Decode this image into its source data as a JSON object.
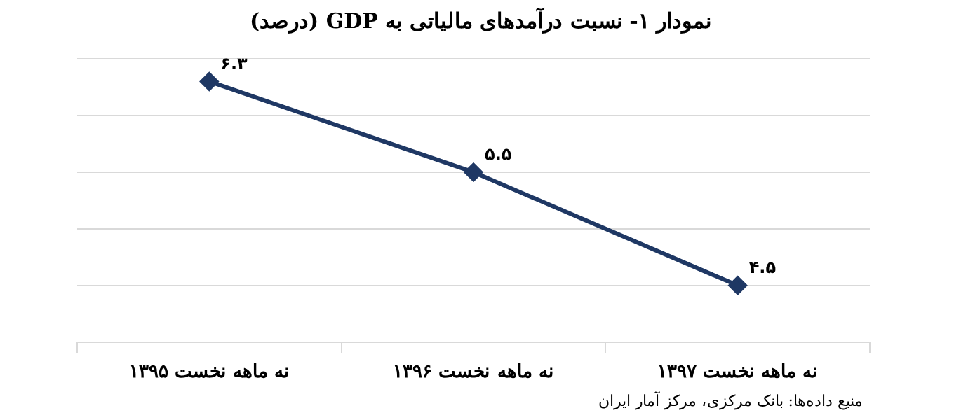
{
  "chart_data": {
    "type": "line",
    "title": "نمودار ۱- نسبت درآمدهای مالیاتی به GDP (درصد)",
    "categories": [
      "نه ماهه نخست ۱۳۹۵",
      "نه ماهه نخست ۱۳۹۶",
      "نه ماهه نخست ۱۳۹۷"
    ],
    "series": [
      {
        "color": "#1f3864",
        "values": [
          6.3,
          5.5,
          4.5
        ],
        "value_labels": [
          "۶.۳",
          "۵.۵",
          "۴.۵"
        ]
      }
    ],
    "ylim": [
      4,
      6.5
    ],
    "yticks": [
      {
        "value": 4,
        "label": null
      },
      {
        "value": 4.5,
        "label": null
      },
      {
        "value": 5,
        "label": null
      },
      {
        "value": 5.5,
        "label": null
      },
      {
        "value": 6,
        "label": null
      },
      {
        "value": 6.5,
        "label": null
      }
    ],
    "tick_labels": "x",
    "grid": "y",
    "marker": "diamond",
    "line_style": "solid",
    "legend": false,
    "annotations": [
      "منبع داده‌ها: بانک مرکزی، مرکز آمار ایران"
    ]
  }
}
